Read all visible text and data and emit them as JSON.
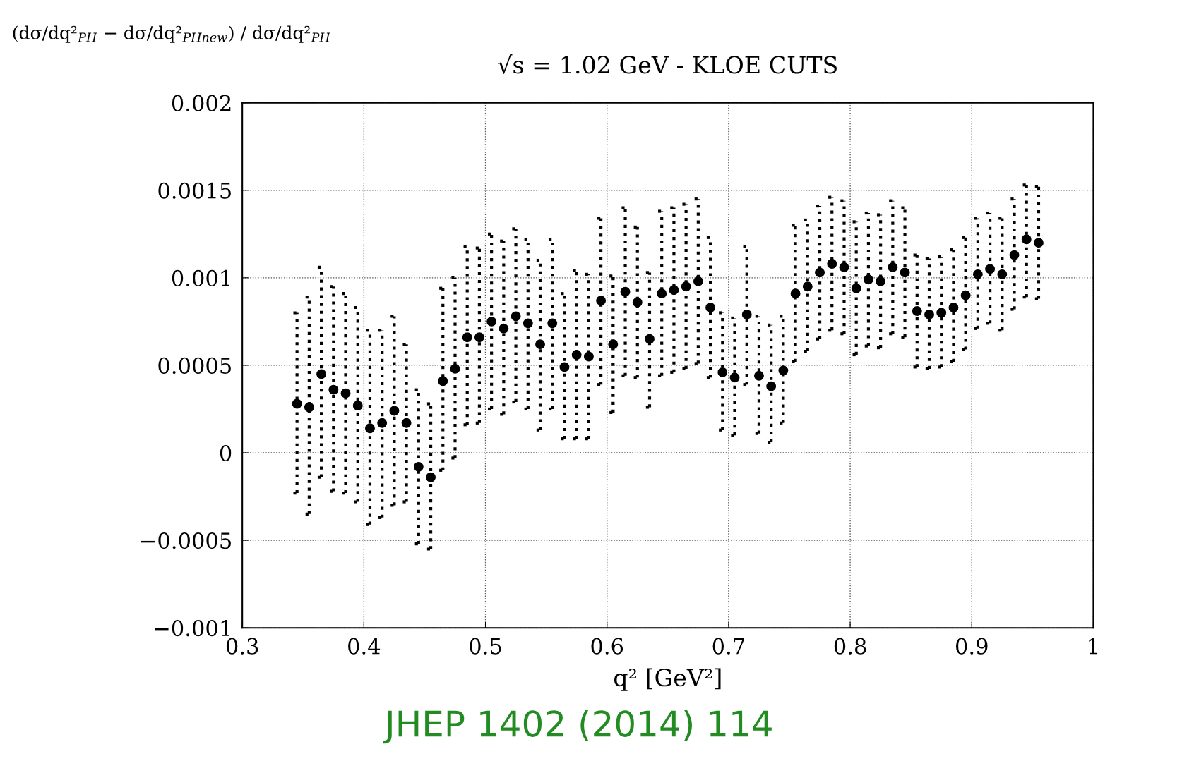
{
  "chart_data": {
    "type": "scatter",
    "title": "√s = 1.02 GeV - KLOE CUTS",
    "ylabel": "(dσ/dq²$_{PH}$ − dσ/dq²$_{PHnew}$) / dσ/dq²$_{PH}$",
    "xlabel": "q² [GeV²]",
    "annotations": [
      "JHEP 1402 (2014) 114"
    ],
    "x": [
      0.345,
      0.355,
      0.365,
      0.375,
      0.385,
      0.395,
      0.405,
      0.415,
      0.425,
      0.435,
      0.445,
      0.455,
      0.465,
      0.475,
      0.485,
      0.495,
      0.505,
      0.515,
      0.525,
      0.535,
      0.545,
      0.555,
      0.565,
      0.575,
      0.585,
      0.595,
      0.605,
      0.615,
      0.625,
      0.635,
      0.645,
      0.655,
      0.665,
      0.675,
      0.685,
      0.695,
      0.705,
      0.715,
      0.725,
      0.735,
      0.745,
      0.755,
      0.765,
      0.775,
      0.785,
      0.795,
      0.805,
      0.815,
      0.825,
      0.835,
      0.845,
      0.855,
      0.865,
      0.875,
      0.885,
      0.895,
      0.905,
      0.915,
      0.925,
      0.935,
      0.945,
      0.955
    ],
    "series": [
      {
        "color": "#000000",
        "values": [
          0.00028,
          0.00026,
          0.00045,
          0.00036,
          0.00034,
          0.00027,
          0.00014,
          0.00017,
          0.00024,
          0.00017,
          -8e-05,
          -0.00014,
          0.00041,
          0.00048,
          0.00066,
          0.00066,
          0.00075,
          0.00071,
          0.00078,
          0.00074,
          0.00062,
          0.00074,
          0.00049,
          0.00056,
          0.00055,
          0.00087,
          0.00062,
          0.00092,
          0.00086,
          0.00065,
          0.00091,
          0.00093,
          0.00095,
          0.00098,
          0.00083,
          0.00046,
          0.00043,
          0.00079,
          0.00044,
          0.00038,
          0.00047,
          0.00091,
          0.00095,
          0.00103,
          0.00108,
          0.00106,
          0.00094,
          0.00099,
          0.00098,
          0.00106,
          0.00103,
          0.00081,
          0.00079,
          0.0008,
          0.00083,
          0.0009,
          0.00102,
          0.00105,
          0.00102,
          0.00113,
          0.00122,
          0.0012
        ],
        "errors": [
          [
            -0.00023,
            0.0008
          ],
          [
            -0.00035,
            0.00089
          ],
          [
            -0.00014,
            0.00106
          ],
          [
            -0.00022,
            0.00095
          ],
          [
            -0.00023,
            0.00091
          ],
          [
            -0.00028,
            0.00083
          ],
          [
            -0.00041,
            0.0007
          ],
          [
            -0.00037,
            0.0007
          ],
          [
            -0.0003,
            0.00078
          ],
          [
            -0.00028,
            0.00062
          ],
          [
            -0.00052,
            0.00036
          ],
          [
            -0.00055,
            0.00028
          ],
          [
            -0.0001,
            0.00094
          ],
          [
            -3e-05,
            0.001
          ],
          [
            0.00016,
            0.00118
          ],
          [
            0.00017,
            0.00117
          ],
          [
            0.00025,
            0.00125
          ],
          [
            0.00022,
            0.00121
          ],
          [
            0.00029,
            0.00128
          ],
          [
            0.00025,
            0.00122
          ],
          [
            0.00013,
            0.0011
          ],
          [
            0.00025,
            0.00122
          ],
          [
            8e-05,
            0.00091
          ],
          [
            8e-05,
            0.00104
          ],
          [
            8e-05,
            0.00102
          ],
          [
            0.00039,
            0.00134
          ],
          [
            0.00023,
            0.00101
          ],
          [
            0.00044,
            0.0014
          ],
          [
            0.00043,
            0.00129
          ],
          [
            0.00026,
            0.00103
          ],
          [
            0.00044,
            0.00138
          ],
          [
            0.00046,
            0.0014
          ],
          [
            0.00048,
            0.00142
          ],
          [
            0.00051,
            0.00145
          ],
          [
            0.00043,
            0.00123
          ],
          [
            0.00013,
            0.0008
          ],
          [
            0.0001,
            0.00077
          ],
          [
            0.00039,
            0.00118
          ],
          [
            0.00011,
            0.00078
          ],
          [
            6e-05,
            0.00073
          ],
          [
            0.00017,
            0.00078
          ],
          [
            0.00052,
            0.0013
          ],
          [
            0.00058,
            0.00133
          ],
          [
            0.00065,
            0.00141
          ],
          [
            0.0007,
            0.00146
          ],
          [
            0.00068,
            0.00144
          ],
          [
            0.00056,
            0.00132
          ],
          [
            0.00061,
            0.00137
          ],
          [
            0.0006,
            0.00136
          ],
          [
            0.00068,
            0.00144
          ],
          [
            0.00066,
            0.0014
          ],
          [
            0.00049,
            0.00113
          ],
          [
            0.00048,
            0.00111
          ],
          [
            0.00049,
            0.00112
          ],
          [
            0.00052,
            0.00116
          ],
          [
            0.00059,
            0.00123
          ],
          [
            0.00071,
            0.00134
          ],
          [
            0.00074,
            0.00137
          ],
          [
            0.0007,
            0.00134
          ],
          [
            0.00082,
            0.00145
          ],
          [
            0.00089,
            0.00153
          ],
          [
            0.00088,
            0.00152
          ]
        ]
      }
    ],
    "xlim": [
      0.3,
      1
    ],
    "xticks": [
      0.3,
      0.4,
      0.5,
      0.6,
      0.7,
      0.8,
      0.9,
      1
    ],
    "ylim": [
      -0.001,
      0.002
    ],
    "yticks": [
      {
        "value": -0.001,
        "label": "−0.001"
      },
      {
        "value": -0.0005,
        "label": "−0.0005"
      },
      0,
      0.0005,
      0.001,
      0.0015,
      0.002
    ],
    "grid": true,
    "marker": "circle",
    "line_style": "dotted",
    "legend": false
  }
}
